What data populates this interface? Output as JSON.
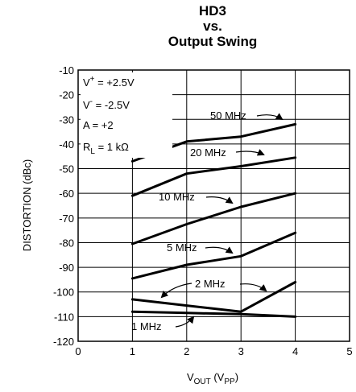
{
  "chart_data": {
    "type": "line",
    "title_lines": [
      "HD3",
      "vs.",
      "Output Swing"
    ],
    "xlabel": "VOUT (VPP)",
    "ylabel": "DISTORTION (dBc)",
    "xlim": [
      0,
      5
    ],
    "ylim": [
      -120,
      -10
    ],
    "x_ticks": [
      "0",
      "1",
      "2",
      "3",
      "4",
      "5"
    ],
    "y_ticks": [
      "-10",
      "-20",
      "-30",
      "-40",
      "-50",
      "-60",
      "-70",
      "-80",
      "-90",
      "-100",
      "-110",
      "-120"
    ],
    "conditions": [
      "V+ = +2.5V",
      "V- = -2.5V",
      "A = +2",
      "RL = 1 kΩ"
    ],
    "grid": true,
    "series": [
      {
        "name": "50 MHz",
        "points": [
          [
            1,
            -47
          ],
          [
            2,
            -39
          ],
          [
            3,
            -37
          ],
          [
            4,
            -32
          ]
        ]
      },
      {
        "name": "20 MHz",
        "points": [
          [
            1,
            -61
          ],
          [
            2,
            -52
          ],
          [
            3,
            -49
          ],
          [
            4,
            -45.5
          ]
        ]
      },
      {
        "name": "10 MHz",
        "points": [
          [
            1,
            -80.5
          ],
          [
            2,
            -72.5
          ],
          [
            3,
            -65.5
          ],
          [
            4,
            -60
          ]
        ]
      },
      {
        "name": "5 MHz",
        "points": [
          [
            1,
            -94.5
          ],
          [
            2,
            -89
          ],
          [
            3,
            -85.5
          ],
          [
            4,
            -76
          ]
        ]
      },
      {
        "name": "2 MHz",
        "points": [
          [
            1,
            -103
          ],
          [
            2,
            -105.5
          ],
          [
            3,
            -108
          ],
          [
            4,
            -96
          ]
        ]
      },
      {
        "name": "1 MHz",
        "points": [
          [
            1,
            -108
          ],
          [
            2,
            -108.5
          ],
          [
            3,
            -109
          ],
          [
            4,
            -110
          ]
        ]
      }
    ]
  }
}
